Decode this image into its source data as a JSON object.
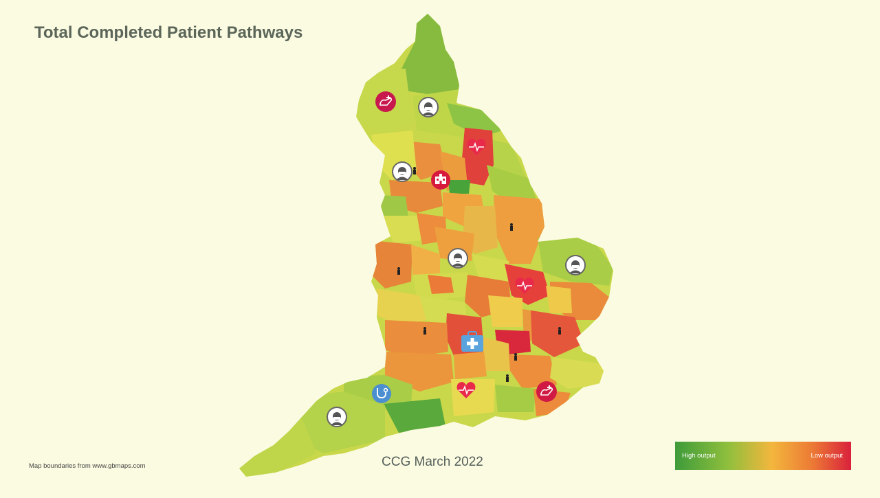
{
  "title": "Total Completed Patient Pathways",
  "caption": "CCG March 2022",
  "credit": "Map boundaries from www.gbmaps.com",
  "legend": {
    "high_label": "High output",
    "low_label": "Low output",
    "colors": [
      "#3e9b3a",
      "#8fbf3d",
      "#f3b63d",
      "#ec7a35",
      "#d9213b"
    ]
  },
  "map": {
    "background": "#fbfbe2",
    "icons": [
      "care-hand-icon",
      "masked-person-icon",
      "heart-rate-icon",
      "hospital-icon",
      "person-icon",
      "medical-kit-icon",
      "stethoscope-icon"
    ]
  }
}
